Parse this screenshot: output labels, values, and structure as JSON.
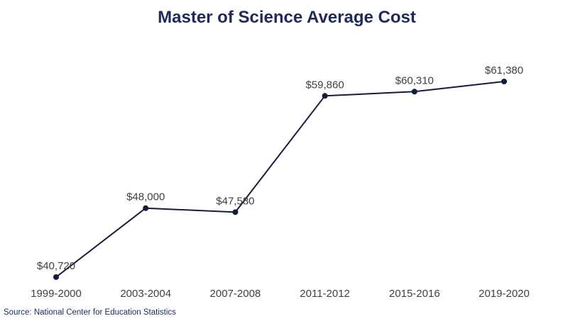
{
  "colors": {
    "title": "#1f2a5a",
    "line": "#151d3d",
    "label": "#404040",
    "source": "#1b2a5c",
    "background": "#ffffff"
  },
  "source_text": "Source: National Center for Education Statistics",
  "chart_data": {
    "type": "line",
    "title": "Master of Science Average Cost",
    "xlabel": "",
    "ylabel": "",
    "categories": [
      "1999-2000",
      "2003-2004",
      "2007-2008",
      "2011-2012",
      "2015-2016",
      "2019-2020"
    ],
    "series": [
      {
        "values": [
          40720,
          48000,
          47580,
          59860,
          60310,
          61380
        ],
        "labels": [
          "$40,720",
          "$48,000",
          "$47,580",
          "$59,860",
          "$60,310",
          "$61,380"
        ]
      }
    ],
    "ylim": [
      40720,
      61380
    ],
    "grid": false,
    "legend": "none",
    "axes_visible": false
  }
}
